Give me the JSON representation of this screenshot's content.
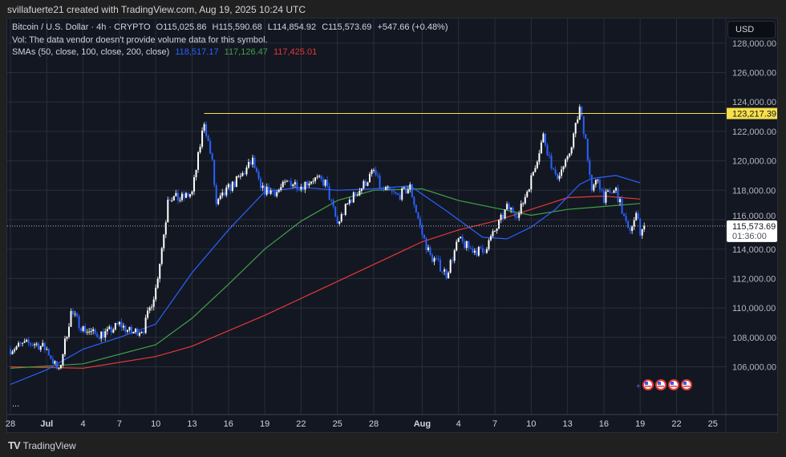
{
  "header": {
    "attribution": "svillafuerte21 created with TradingView.com, Aug 19, 2025 10:24 UTC"
  },
  "legend": {
    "symbol": "Bitcoin / U.S. Dollar · 4h · CRYPTO",
    "open": "O115,025.86",
    "high": "H115,590.68",
    "low": "L114,854.92",
    "close": "C115,573.69",
    "change": "+547.66 (+0.48%)",
    "volume_note": "Vol: The data vendor doesn't provide volume data for this symbol.",
    "sma_label": "SMAs (50, close, 100, close, 200, close)",
    "sma50": "118,517.17",
    "sma100": "117,126.47",
    "sma200": "117,425.01"
  },
  "price_axis": {
    "currency": "USD",
    "ticks": [
      "106,000.00",
      "108,000.00",
      "110,000.00",
      "112,000.00",
      "114,000.00",
      "116,000.00",
      "118,000.00",
      "120,000.00",
      "122,000.00",
      "124,000.00",
      "126,000.00",
      "128,000.00"
    ],
    "level_label": "123,217.39",
    "last_price_label": "115,573.69",
    "countdown": "01:36:00"
  },
  "time_axis": {
    "ticks": [
      [
        "28",
        "2025-06-28"
      ],
      [
        "Jul",
        "2025-07-01"
      ],
      [
        "4",
        "2025-07-04"
      ],
      [
        "7",
        "2025-07-07"
      ],
      [
        "10",
        "2025-07-10"
      ],
      [
        "13",
        "2025-07-13"
      ],
      [
        "16",
        "2025-07-16"
      ],
      [
        "19",
        "2025-07-19"
      ],
      [
        "22",
        "2025-07-22"
      ],
      [
        "25",
        "2025-07-25"
      ],
      [
        "28",
        "2025-07-28"
      ],
      [
        "Aug",
        "2025-08-01"
      ],
      [
        "4",
        "2025-08-04"
      ],
      [
        "7",
        "2025-08-07"
      ],
      [
        "10",
        "2025-08-10"
      ],
      [
        "13",
        "2025-08-13"
      ],
      [
        "16",
        "2025-08-16"
      ],
      [
        "19",
        "2025-08-19"
      ],
      [
        "22",
        "2025-08-22"
      ],
      [
        "25",
        "2025-08-25"
      ]
    ]
  },
  "footer": {
    "brand": "TradingView",
    "more": "..."
  },
  "colors": {
    "up": "#ffffff",
    "down": "#2962ff",
    "sma50": "#2962ff",
    "sma100": "#43a047",
    "sma200": "#e53935",
    "level": "#f7e04b",
    "background": "#131722",
    "grid": "#2a2e39"
  },
  "chart_data": {
    "type": "candlestick",
    "ylim": [
      105000,
      129000
    ],
    "price_line": 123217.39,
    "last_price": 115573.69,
    "closes": [
      [
        "2025-06-28",
        107200
      ],
      [
        "2025-06-29",
        107500
      ],
      [
        "2025-06-30",
        107600
      ],
      [
        "2025-07-01",
        107200
      ],
      [
        "2025-07-02",
        105600
      ],
      [
        "2025-07-03",
        109700
      ],
      [
        "2025-07-04",
        108600
      ],
      [
        "2025-07-05",
        108200
      ],
      [
        "2025-07-06",
        108300
      ],
      [
        "2025-07-07",
        108900
      ],
      [
        "2025-07-08",
        108300
      ],
      [
        "2025-07-09",
        108600
      ],
      [
        "2025-07-10",
        111300
      ],
      [
        "2025-07-10T20",
        116000
      ],
      [
        "2025-07-11",
        117600
      ],
      [
        "2025-07-12",
        117400
      ],
      [
        "2025-07-13",
        117800
      ],
      [
        "2025-07-14",
        122700
      ],
      [
        "2025-07-14T16",
        119800
      ],
      [
        "2025-07-15",
        117000
      ],
      [
        "2025-07-16",
        118100
      ],
      [
        "2025-07-17",
        118900
      ],
      [
        "2025-07-18",
        120000
      ],
      [
        "2025-07-18T16",
        118000
      ],
      [
        "2025-07-19",
        118000
      ],
      [
        "2025-07-20",
        117900
      ],
      [
        "2025-07-21",
        118600
      ],
      [
        "2025-07-22",
        118300
      ],
      [
        "2025-07-23",
        118800
      ],
      [
        "2025-07-24",
        118500
      ],
      [
        "2025-07-25",
        115700
      ],
      [
        "2025-07-26",
        117300
      ],
      [
        "2025-07-27",
        118200
      ],
      [
        "2025-07-28",
        119300
      ],
      [
        "2025-07-28T16",
        118000
      ],
      [
        "2025-07-29",
        118000
      ],
      [
        "2025-07-30",
        117600
      ],
      [
        "2025-07-31",
        118200
      ],
      [
        "2025-08-01",
        115000
      ],
      [
        "2025-08-01T16",
        113500
      ],
      [
        "2025-08-02",
        113300
      ],
      [
        "2025-08-03",
        112300
      ],
      [
        "2025-08-04",
        114600
      ],
      [
        "2025-08-05",
        114000
      ],
      [
        "2025-08-06",
        113800
      ],
      [
        "2025-08-07",
        115200
      ],
      [
        "2025-08-08",
        116800
      ],
      [
        "2025-08-09",
        116400
      ],
      [
        "2025-08-10",
        118800
      ],
      [
        "2025-08-11",
        121700
      ],
      [
        "2025-08-12",
        118800
      ],
      [
        "2025-08-13",
        120000
      ],
      [
        "2025-08-14",
        123500
      ],
      [
        "2025-08-14T12",
        121500
      ],
      [
        "2025-08-15",
        117800
      ],
      [
        "2025-08-15T12",
        118800
      ],
      [
        "2025-08-16",
        117500
      ],
      [
        "2025-08-17",
        118000
      ],
      [
        "2025-08-18",
        115200
      ],
      [
        "2025-08-18T20",
        116400
      ],
      [
        "2025-08-19",
        115100
      ],
      [
        "2025-08-19T08",
        115574
      ]
    ],
    "sma50": [
      [
        "2025-06-28",
        104800
      ],
      [
        "2025-07-01",
        105800
      ],
      [
        "2025-07-04",
        107200
      ],
      [
        "2025-07-07",
        108000
      ],
      [
        "2025-07-10",
        108900
      ],
      [
        "2025-07-13",
        112400
      ],
      [
        "2025-07-16",
        115300
      ],
      [
        "2025-07-19",
        117900
      ],
      [
        "2025-07-22",
        118200
      ],
      [
        "2025-07-25",
        118000
      ],
      [
        "2025-07-28",
        118100
      ],
      [
        "2025-07-31",
        118300
      ],
      [
        "2025-08-03",
        116600
      ],
      [
        "2025-08-06",
        114800
      ],
      [
        "2025-08-08",
        114700
      ],
      [
        "2025-08-10",
        115500
      ],
      [
        "2025-08-12",
        116700
      ],
      [
        "2025-08-14",
        118400
      ],
      [
        "2025-08-15",
        118800
      ],
      [
        "2025-08-17",
        119000
      ],
      [
        "2025-08-19",
        118500
      ]
    ],
    "sma100": [
      [
        "2025-06-28",
        105900
      ],
      [
        "2025-07-04",
        106200
      ],
      [
        "2025-07-10",
        107500
      ],
      [
        "2025-07-13",
        109300
      ],
      [
        "2025-07-16",
        111600
      ],
      [
        "2025-07-19",
        114000
      ],
      [
        "2025-07-22",
        115900
      ],
      [
        "2025-07-25",
        117300
      ],
      [
        "2025-07-28",
        118000
      ],
      [
        "2025-08-01",
        118100
      ],
      [
        "2025-08-04",
        117300
      ],
      [
        "2025-08-07",
        116800
      ],
      [
        "2025-08-10",
        116300
      ],
      [
        "2025-08-13",
        116700
      ],
      [
        "2025-08-16",
        116900
      ],
      [
        "2025-08-19",
        117100
      ]
    ],
    "sma200": [
      [
        "2025-06-28",
        106000
      ],
      [
        "2025-07-04",
        105900
      ],
      [
        "2025-07-10",
        106700
      ],
      [
        "2025-07-13",
        107400
      ],
      [
        "2025-07-19",
        109500
      ],
      [
        "2025-07-25",
        111800
      ],
      [
        "2025-08-01",
        114500
      ],
      [
        "2025-08-04",
        115300
      ],
      [
        "2025-08-07",
        115900
      ],
      [
        "2025-08-10",
        116700
      ],
      [
        "2025-08-13",
        117500
      ],
      [
        "2025-08-16",
        117600
      ],
      [
        "2025-08-19",
        117400
      ]
    ],
    "event_markers": [
      "us-flag-icon",
      "us-flag-icon",
      "us-flag-icon",
      "us-flag-icon"
    ]
  }
}
